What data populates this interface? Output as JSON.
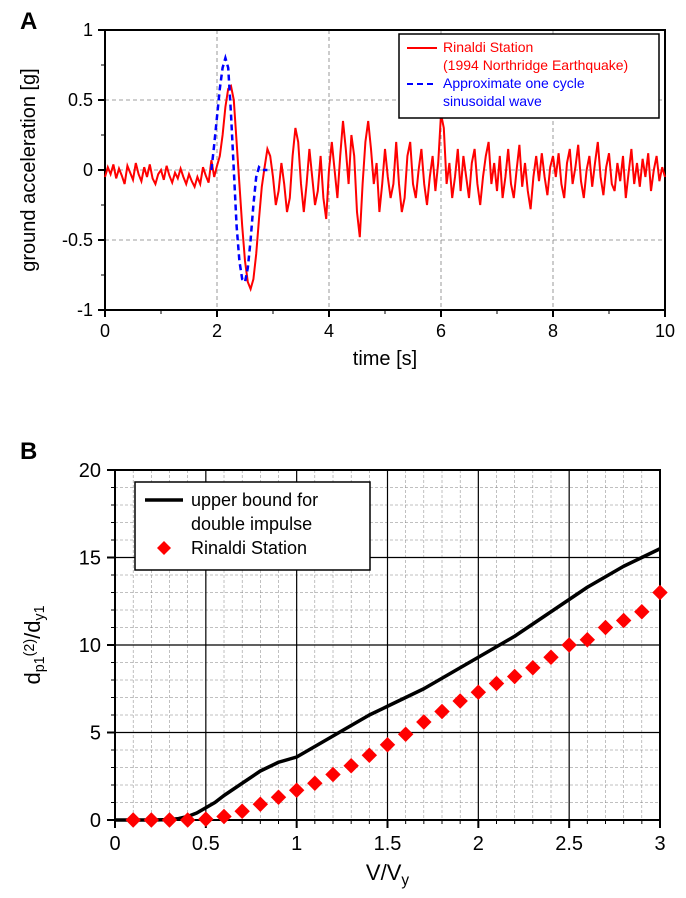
{
  "panelA": {
    "label": "A",
    "label_fontsize": 24,
    "type": "line",
    "xlabel": "time [s]",
    "ylabel": "ground acceleration [g]",
    "axis_fontsize": 20,
    "tick_fontsize": 18,
    "xlim": [
      0,
      10
    ],
    "ylim": [
      -1,
      1
    ],
    "xticks": [
      0,
      2,
      4,
      6,
      8,
      10
    ],
    "yticks": [
      -1,
      -0.5,
      0,
      0.5,
      1
    ],
    "minor_xstep": 1,
    "minor_ystep": 0.25,
    "background_color": "#ffffff",
    "axis_color": "#000000",
    "axis_width": 2,
    "grid_major_color": "#808080",
    "grid_major_dash": "4 3",
    "legend": {
      "border_color": "#000000",
      "border_width": 1.5,
      "bg": "#ffffff",
      "fontsize": 14,
      "entries": [
        {
          "color": "#ff0000",
          "dash": "",
          "width": 2,
          "lines": [
            "Rinaldi Station",
            "  (1994 Northridge Earthquake)"
          ]
        },
        {
          "color": "#0000ff",
          "dash": "6 4",
          "width": 2,
          "lines": [
            "Approximate one cycle",
            "  sinusoidal wave"
          ]
        }
      ]
    },
    "series": [
      {
        "name": "Rinaldi Station",
        "color": "#ff0000",
        "width": 2,
        "dash": "",
        "x": [
          0,
          0.05,
          0.1,
          0.15,
          0.2,
          0.25,
          0.3,
          0.35,
          0.4,
          0.45,
          0.5,
          0.55,
          0.6,
          0.65,
          0.7,
          0.75,
          0.8,
          0.85,
          0.9,
          0.95,
          1,
          1.05,
          1.1,
          1.15,
          1.2,
          1.25,
          1.3,
          1.35,
          1.4,
          1.45,
          1.5,
          1.55,
          1.6,
          1.65,
          1.7,
          1.75,
          1.8,
          1.85,
          1.9,
          1.95,
          2,
          2.05,
          2.1,
          2.15,
          2.2,
          2.25,
          2.3,
          2.35,
          2.4,
          2.45,
          2.5,
          2.55,
          2.6,
          2.65,
          2.7,
          2.75,
          2.8,
          2.85,
          2.9,
          2.95,
          3,
          3.05,
          3.1,
          3.15,
          3.2,
          3.25,
          3.3,
          3.35,
          3.4,
          3.45,
          3.5,
          3.55,
          3.6,
          3.65,
          3.7,
          3.75,
          3.8,
          3.85,
          3.9,
          3.95,
          4,
          4.05,
          4.1,
          4.15,
          4.2,
          4.25,
          4.3,
          4.35,
          4.4,
          4.45,
          4.5,
          4.55,
          4.6,
          4.65,
          4.7,
          4.75,
          4.8,
          4.85,
          4.9,
          4.95,
          5,
          5.05,
          5.1,
          5.15,
          5.2,
          5.25,
          5.3,
          5.35,
          5.4,
          5.45,
          5.5,
          5.55,
          5.6,
          5.65,
          5.7,
          5.75,
          5.8,
          5.85,
          5.9,
          5.95,
          6,
          6.05,
          6.1,
          6.15,
          6.2,
          6.25,
          6.3,
          6.35,
          6.4,
          6.45,
          6.5,
          6.55,
          6.6,
          6.65,
          6.7,
          6.75,
          6.8,
          6.85,
          6.9,
          6.95,
          7,
          7.05,
          7.1,
          7.15,
          7.2,
          7.25,
          7.3,
          7.35,
          7.4,
          7.45,
          7.5,
          7.55,
          7.6,
          7.65,
          7.7,
          7.75,
          7.8,
          7.85,
          7.9,
          7.95,
          8,
          8.05,
          8.1,
          8.15,
          8.2,
          8.25,
          8.3,
          8.35,
          8.4,
          8.45,
          8.5,
          8.55,
          8.6,
          8.65,
          8.7,
          8.75,
          8.8,
          8.85,
          8.9,
          8.95,
          9,
          9.05,
          9.1,
          9.15,
          9.2,
          9.25,
          9.3,
          9.35,
          9.4,
          9.45,
          9.5,
          9.55,
          9.6,
          9.65,
          9.7,
          9.75,
          9.8,
          9.85,
          9.9,
          9.95,
          10
        ],
        "y": [
          -0.05,
          0.02,
          -0.03,
          0.04,
          -0.06,
          0.01,
          -0.04,
          -0.1,
          0.03,
          -0.02,
          -0.07,
          0.05,
          -0.03,
          -0.08,
          0.02,
          -0.05,
          0.04,
          -0.06,
          -0.1,
          -0.03,
          0.0,
          -0.07,
          0.03,
          -0.04,
          -0.09,
          -0.02,
          -0.06,
          0.01,
          -0.05,
          -0.1,
          -0.03,
          -0.08,
          -0.12,
          -0.05,
          -0.1,
          0.02,
          -0.04,
          -0.09,
          0.07,
          -0.05,
          0.03,
          0.1,
          0.25,
          0.45,
          0.58,
          0.6,
          0.5,
          0.2,
          -0.1,
          -0.4,
          -0.65,
          -0.8,
          -0.85,
          -0.78,
          -0.6,
          -0.35,
          -0.12,
          0.02,
          0.15,
          0.1,
          -0.05,
          -0.25,
          -0.15,
          0.05,
          -0.1,
          -0.3,
          -0.2,
          0.1,
          0.3,
          0.2,
          -0.1,
          -0.3,
          -0.1,
          0.15,
          -0.05,
          -0.25,
          -0.15,
          0.1,
          -0.2,
          -0.35,
          0.0,
          0.2,
          0.0,
          -0.2,
          0.1,
          0.35,
          0.15,
          -0.1,
          0.25,
          0.1,
          -0.3,
          -0.48,
          -0.1,
          0.2,
          0.35,
          0.15,
          -0.1,
          0.05,
          -0.3,
          -0.1,
          0.15,
          -0.05,
          -0.2,
          -0.1,
          0.2,
          -0.1,
          -0.3,
          -0.2,
          0.1,
          0.2,
          -0.1,
          -0.2,
          0.0,
          0.15,
          -0.1,
          -0.25,
          -0.05,
          0.1,
          -0.15,
          0.05,
          0.4,
          0.3,
          -0.1,
          0.05,
          -0.2,
          -0.05,
          0.15,
          -0.15,
          0.1,
          -0.05,
          -0.2,
          0.05,
          0.15,
          -0.1,
          -0.25,
          -0.05,
          0.1,
          0.2,
          -0.1,
          0.05,
          -0.15,
          0.1,
          -0.2,
          -0.05,
          0.15,
          -0.1,
          -0.2,
          0.0,
          0.18,
          -0.12,
          0.05,
          -0.15,
          -0.28,
          -0.05,
          0.1,
          -0.08,
          0.12,
          -0.05,
          -0.18,
          0.02,
          0.1,
          -0.05,
          0.12,
          -0.1,
          -0.2,
          0.05,
          0.15,
          -0.1,
          0.02,
          0.18,
          -0.08,
          -0.2,
          0.0,
          0.1,
          -0.12,
          0.05,
          0.2,
          -0.05,
          -0.18,
          0.02,
          0.12,
          -0.1,
          -0.15,
          0.05,
          -0.08,
          0.1,
          -0.2,
          -0.02,
          0.15,
          -0.1,
          0.05,
          -0.12,
          0.08,
          -0.05,
          0.12,
          -0.15,
          0.0,
          0.1,
          -0.08,
          0.02,
          -0.05
        ]
      },
      {
        "name": "Approximate sinusoid",
        "color": "#0000ff",
        "width": 2.5,
        "dash": "6 4",
        "x": [
          1.9,
          1.95,
          2.0,
          2.05,
          2.1,
          2.15,
          2.2,
          2.25,
          2.3,
          2.35,
          2.4,
          2.45,
          2.5,
          2.55,
          2.6,
          2.65,
          2.7,
          2.75,
          2.8,
          2.85,
          2.9
        ],
        "y": [
          0,
          0.18,
          0.38,
          0.58,
          0.73,
          0.8,
          0.73,
          0.4,
          0.0,
          -0.4,
          -0.65,
          -0.78,
          -0.8,
          -0.7,
          -0.5,
          -0.25,
          -0.05,
          0.02,
          0.0,
          0.0,
          0.0
        ]
      }
    ]
  },
  "panelB": {
    "label": "B",
    "label_fontsize": 24,
    "type": "line+scatter",
    "xlabel": "V/V",
    "xlabel_sub": "y",
    "ylabel_main": "d",
    "ylabel_sub1": "p1",
    "ylabel_sup": "(2)",
    "ylabel_div": "/d",
    "ylabel_sub2": "y1",
    "axis_fontsize": 22,
    "tick_fontsize": 20,
    "xlim": [
      0,
      3
    ],
    "ylim": [
      0,
      20
    ],
    "xticks": [
      0,
      0.5,
      1,
      1.5,
      2,
      2.5,
      3
    ],
    "yticks": [
      0,
      5,
      10,
      15,
      20
    ],
    "minor_xstep": 0.1,
    "minor_ystep": 1,
    "background_color": "#ffffff",
    "axis_color": "#000000",
    "axis_width": 2,
    "grid_major_color": "#000000",
    "grid_major_width": 1.2,
    "grid_minor_color": "#808080",
    "grid_minor_dash": "3 2",
    "legend": {
      "border_color": "#000000",
      "border_width": 1.5,
      "bg": "#ffffff",
      "fontsize": 18,
      "entries": [
        {
          "type": "line",
          "color": "#000000",
          "width": 3.5,
          "lines": [
            "upper bound for",
            "double impulse"
          ]
        },
        {
          "type": "marker",
          "color": "#ff0000",
          "marker": "diamond",
          "lines": [
            "Rinaldi Station"
          ]
        }
      ]
    },
    "line_series": {
      "name": "upper bound",
      "color": "#000000",
      "width": 3.5,
      "x": [
        0,
        0.1,
        0.2,
        0.3,
        0.35,
        0.4,
        0.45,
        0.5,
        0.55,
        0.6,
        0.7,
        0.8,
        0.9,
        1.0,
        1.1,
        1.2,
        1.3,
        1.4,
        1.5,
        1.6,
        1.7,
        1.8,
        1.9,
        2.0,
        2.1,
        2.2,
        2.3,
        2.4,
        2.5,
        2.6,
        2.7,
        2.8,
        2.9,
        3.0
      ],
      "y": [
        0,
        0,
        0,
        0.02,
        0.08,
        0.2,
        0.4,
        0.7,
        1.0,
        1.4,
        2.1,
        2.8,
        3.3,
        3.6,
        4.2,
        4.8,
        5.4,
        6.0,
        6.5,
        7.0,
        7.5,
        8.1,
        8.7,
        9.3,
        9.9,
        10.5,
        11.2,
        11.9,
        12.6,
        13.3,
        13.9,
        14.5,
        15.0,
        15.5
      ]
    },
    "scatter_series": {
      "name": "Rinaldi Station",
      "color": "#ff0000",
      "marker": "diamond",
      "marker_size": 7,
      "x": [
        0.1,
        0.2,
        0.3,
        0.4,
        0.5,
        0.6,
        0.7,
        0.8,
        0.9,
        1.0,
        1.1,
        1.2,
        1.3,
        1.4,
        1.5,
        1.6,
        1.7,
        1.8,
        1.9,
        2.0,
        2.1,
        2.2,
        2.3,
        2.4,
        2.5,
        2.6,
        2.7,
        2.8,
        2.9,
        3.0
      ],
      "y": [
        0.0,
        0.0,
        0.0,
        0.0,
        0.05,
        0.2,
        0.5,
        0.9,
        1.3,
        1.7,
        2.1,
        2.6,
        3.1,
        3.7,
        4.3,
        4.9,
        5.6,
        6.2,
        6.8,
        7.3,
        7.8,
        8.2,
        8.7,
        9.3,
        10.0,
        10.3,
        11.0,
        11.4,
        11.9,
        13.0
      ]
    }
  }
}
